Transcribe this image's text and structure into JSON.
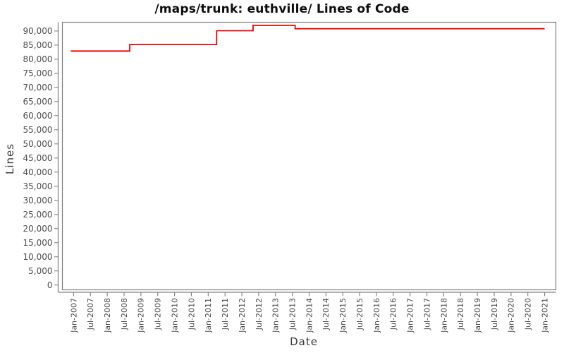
{
  "chart_data": {
    "type": "line",
    "title": "/maps/trunk: euthville/ Lines of Code",
    "xlabel": "Date",
    "ylabel": "Lines",
    "grid": false,
    "legend_position": "none",
    "line_color": "#ee0000",
    "axis_color": "#808080",
    "tick_label_color": "#4d4d4d",
    "x_range": [
      "2006-09",
      "2021-05"
    ],
    "ylim": [
      -1700,
      93100
    ],
    "series": [
      {
        "name": "Lines of Code",
        "step": true,
        "points": [
          {
            "date": "2006-12",
            "value": 82900
          },
          {
            "date": "2008-09",
            "value": 85200
          },
          {
            "date": "2011-04",
            "value": 90100
          },
          {
            "date": "2012-05",
            "value": 92000
          },
          {
            "date": "2013-08",
            "value": 90800
          },
          {
            "date": "2021-01",
            "value": 90800
          }
        ]
      }
    ],
    "x_ticks": [
      {
        "date": "2007-01",
        "label": "Jan-2007"
      },
      {
        "date": "2007-07",
        "label": "Jul-2007"
      },
      {
        "date": "2008-01",
        "label": "Jan-2008"
      },
      {
        "date": "2008-07",
        "label": "Jul-2008"
      },
      {
        "date": "2009-01",
        "label": "Jan-2009"
      },
      {
        "date": "2009-07",
        "label": "Jul-2009"
      },
      {
        "date": "2010-01",
        "label": "Jan-2010"
      },
      {
        "date": "2010-07",
        "label": "Jul-2010"
      },
      {
        "date": "2011-01",
        "label": "Jan-2011"
      },
      {
        "date": "2011-07",
        "label": "Jul-2011"
      },
      {
        "date": "2012-01",
        "label": "Jan-2012"
      },
      {
        "date": "2012-07",
        "label": "Jul-2012"
      },
      {
        "date": "2013-01",
        "label": "Jan-2013"
      },
      {
        "date": "2013-07",
        "label": "Jul-2013"
      },
      {
        "date": "2014-01",
        "label": "Jan-2014"
      },
      {
        "date": "2014-07",
        "label": "Jul-2014"
      },
      {
        "date": "2015-01",
        "label": "Jan-2015"
      },
      {
        "date": "2015-07",
        "label": "Jul-2015"
      },
      {
        "date": "2016-01",
        "label": "Jan-2016"
      },
      {
        "date": "2016-07",
        "label": "Jul-2016"
      },
      {
        "date": "2017-01",
        "label": "Jan-2017"
      },
      {
        "date": "2017-07",
        "label": "Jul-2017"
      },
      {
        "date": "2018-01",
        "label": "Jan-2018"
      },
      {
        "date": "2018-07",
        "label": "Jul-2018"
      },
      {
        "date": "2019-01",
        "label": "Jan-2019"
      },
      {
        "date": "2019-07",
        "label": "Jul-2019"
      },
      {
        "date": "2020-01",
        "label": "Jan-2020"
      },
      {
        "date": "2020-07",
        "label": "Jul-2020"
      },
      {
        "date": "2021-01",
        "label": "Jan-2021"
      }
    ],
    "y_ticks": [
      {
        "value": 0,
        "label": "0"
      },
      {
        "value": 5000,
        "label": "5,000"
      },
      {
        "value": 10000,
        "label": "10,000"
      },
      {
        "value": 15000,
        "label": "15,000"
      },
      {
        "value": 20000,
        "label": "20,000"
      },
      {
        "value": 25000,
        "label": "25,000"
      },
      {
        "value": 30000,
        "label": "30,000"
      },
      {
        "value": 35000,
        "label": "35,000"
      },
      {
        "value": 40000,
        "label": "40,000"
      },
      {
        "value": 45000,
        "label": "45,000"
      },
      {
        "value": 50000,
        "label": "50,000"
      },
      {
        "value": 55000,
        "label": "55,000"
      },
      {
        "value": 60000,
        "label": "60,000"
      },
      {
        "value": 65000,
        "label": "65,000"
      },
      {
        "value": 70000,
        "label": "70,000"
      },
      {
        "value": 75000,
        "label": "75,000"
      },
      {
        "value": 80000,
        "label": "80,000"
      },
      {
        "value": 85000,
        "label": "85,000"
      },
      {
        "value": 90000,
        "label": "90,000"
      }
    ]
  }
}
